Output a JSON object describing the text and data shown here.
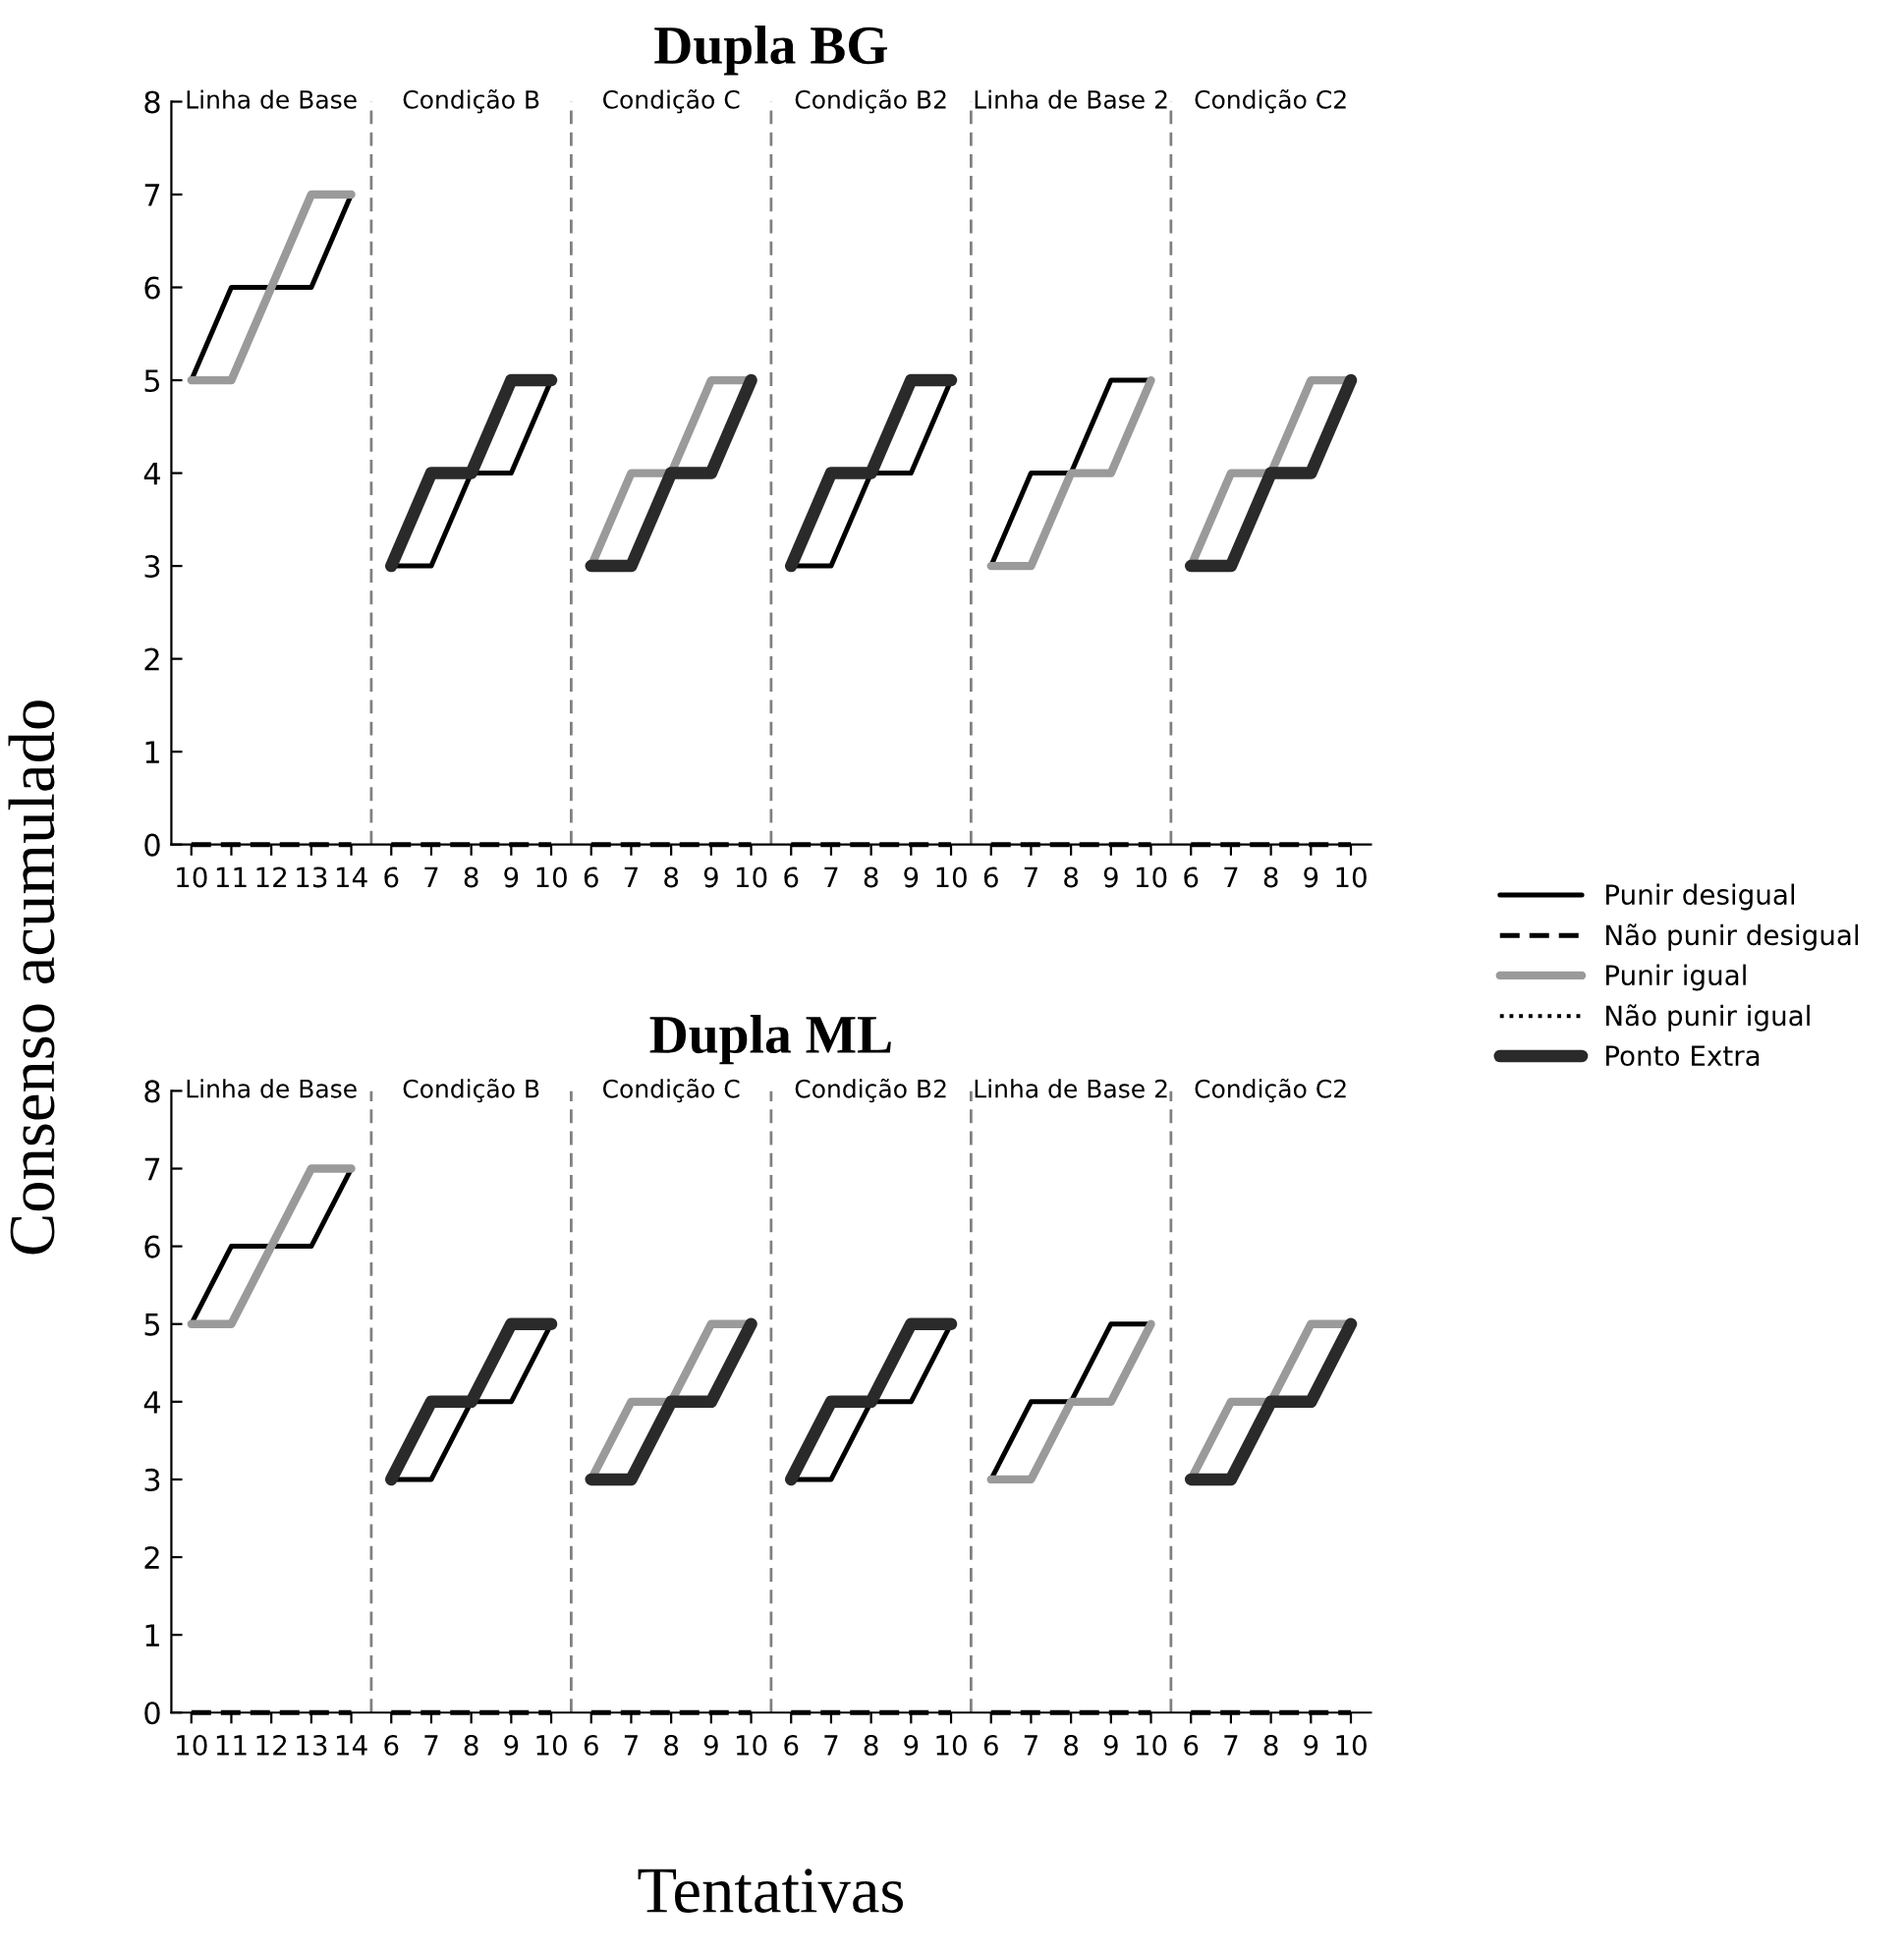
{
  "chart_data": [
    {
      "type": "line",
      "title": "Dupla BG",
      "ylabel": "Consenso acumulado",
      "categories": [
        "10",
        "11",
        "12",
        "13",
        "14",
        "6",
        "7",
        "8",
        "9",
        "10",
        "6",
        "7",
        "8",
        "9",
        "10",
        "6",
        "7",
        "8",
        "9",
        "10",
        "6",
        "7",
        "8",
        "9",
        "10",
        "6",
        "7",
        "8",
        "9",
        "10"
      ],
      "series": [
        {
          "name": "Punir desigual",
          "color": "#000000",
          "line_style": "solid",
          "values": [
            5,
            6,
            6,
            6,
            7,
            3,
            3,
            4,
            4,
            5,
            null,
            null,
            null,
            null,
            null,
            3,
            3,
            4,
            4,
            5,
            3,
            4,
            4,
            5,
            5,
            null,
            null,
            null,
            null,
            null
          ]
        },
        {
          "name": "Não punir desigual",
          "color": "#000000",
          "line_style": "dashed",
          "values": [
            0,
            0,
            0,
            0,
            0,
            0,
            0,
            0,
            0,
            0,
            0,
            0,
            0,
            0,
            0,
            0,
            0,
            0,
            0,
            0,
            0,
            0,
            0,
            0,
            0,
            0,
            0,
            0,
            0,
            0
          ]
        },
        {
          "name": "Punir igual",
          "color": "#9a9a9a",
          "line_style": "solid",
          "values": [
            5,
            5,
            6,
            7,
            7,
            null,
            null,
            null,
            null,
            null,
            3,
            4,
            4,
            5,
            5,
            null,
            null,
            null,
            null,
            null,
            3,
            3,
            4,
            4,
            5,
            3,
            4,
            4,
            5,
            5
          ]
        },
        {
          "name": "Não punir igual",
          "color": "#000000",
          "line_style": "dotted",
          "values": [
            null,
            null,
            null,
            null,
            null,
            null,
            null,
            null,
            null,
            null,
            null,
            null,
            null,
            null,
            null,
            null,
            null,
            null,
            null,
            null,
            null,
            null,
            null,
            null,
            null,
            null,
            null,
            null,
            null,
            null
          ]
        },
        {
          "name": "Ponto Extra",
          "color": "#2a2a2a",
          "line_style": "solid",
          "values": [
            null,
            null,
            null,
            null,
            null,
            3,
            4,
            4,
            5,
            5,
            3,
            3,
            4,
            4,
            5,
            3,
            4,
            4,
            5,
            5,
            null,
            null,
            null,
            null,
            null,
            3,
            3,
            4,
            4,
            5
          ]
        }
      ],
      "ylim": [
        0,
        8
      ],
      "yticks": [
        0,
        1,
        2,
        3,
        4,
        5,
        6,
        7,
        8
      ],
      "legend": "right",
      "grid": false,
      "marker": "none",
      "annotations": [
        "Linha de Base",
        "Condição B",
        "Condição C",
        "Condição B2",
        "Linha de Base 2",
        "Condição C2"
      ]
    },
    {
      "type": "line",
      "title": "Dupla ML",
      "xlabel": "Tentativas",
      "categories": [
        "10",
        "11",
        "12",
        "13",
        "14",
        "6",
        "7",
        "8",
        "9",
        "10",
        "6",
        "7",
        "8",
        "9",
        "10",
        "6",
        "7",
        "8",
        "9",
        "10",
        "6",
        "7",
        "8",
        "9",
        "10",
        "6",
        "7",
        "8",
        "9",
        "10"
      ],
      "series": [
        {
          "color": "#000000",
          "line_style": "solid",
          "values": [
            5,
            6,
            6,
            6,
            7,
            3,
            3,
            4,
            4,
            5,
            null,
            null,
            null,
            null,
            null,
            3,
            3,
            4,
            4,
            5,
            3,
            4,
            4,
            5,
            5,
            null,
            null,
            null,
            null,
            null
          ]
        },
        {
          "color": "#000000",
          "line_style": "dashed",
          "values": [
            0,
            0,
            0,
            0,
            0,
            0,
            0,
            0,
            0,
            0,
            0,
            0,
            0,
            0,
            0,
            0,
            0,
            0,
            0,
            0,
            0,
            0,
            0,
            0,
            0,
            0,
            0,
            0,
            0,
            0
          ]
        },
        {
          "color": "#9a9a9a",
          "line_style": "solid",
          "values": [
            5,
            5,
            6,
            7,
            7,
            null,
            null,
            null,
            null,
            null,
            3,
            4,
            4,
            5,
            5,
            null,
            null,
            null,
            null,
            null,
            3,
            3,
            4,
            4,
            5,
            3,
            4,
            4,
            5,
            5
          ]
        },
        {
          "color": "#000000",
          "line_style": "dotted",
          "values": [
            null,
            null,
            null,
            null,
            null,
            null,
            null,
            null,
            null,
            null,
            null,
            null,
            null,
            null,
            null,
            null,
            null,
            null,
            null,
            null,
            null,
            null,
            null,
            null,
            null,
            null,
            null,
            null,
            null,
            null
          ]
        },
        {
          "color": "#2a2a2a",
          "line_style": "solid",
          "values": [
            null,
            null,
            null,
            null,
            null,
            3,
            4,
            4,
            5,
            5,
            3,
            3,
            4,
            4,
            5,
            3,
            4,
            4,
            5,
            5,
            null,
            null,
            null,
            null,
            null,
            3,
            3,
            4,
            4,
            5
          ]
        }
      ],
      "ylim": [
        0,
        8
      ],
      "yticks": [
        0,
        1,
        2,
        3,
        4,
        5,
        6,
        7,
        8
      ],
      "grid": false,
      "marker": "none",
      "annotations": [
        "Linha de Base",
        "Condição B",
        "Condição C",
        "Condição B2",
        "Linha de Base 2",
        "Condição C2"
      ]
    }
  ]
}
